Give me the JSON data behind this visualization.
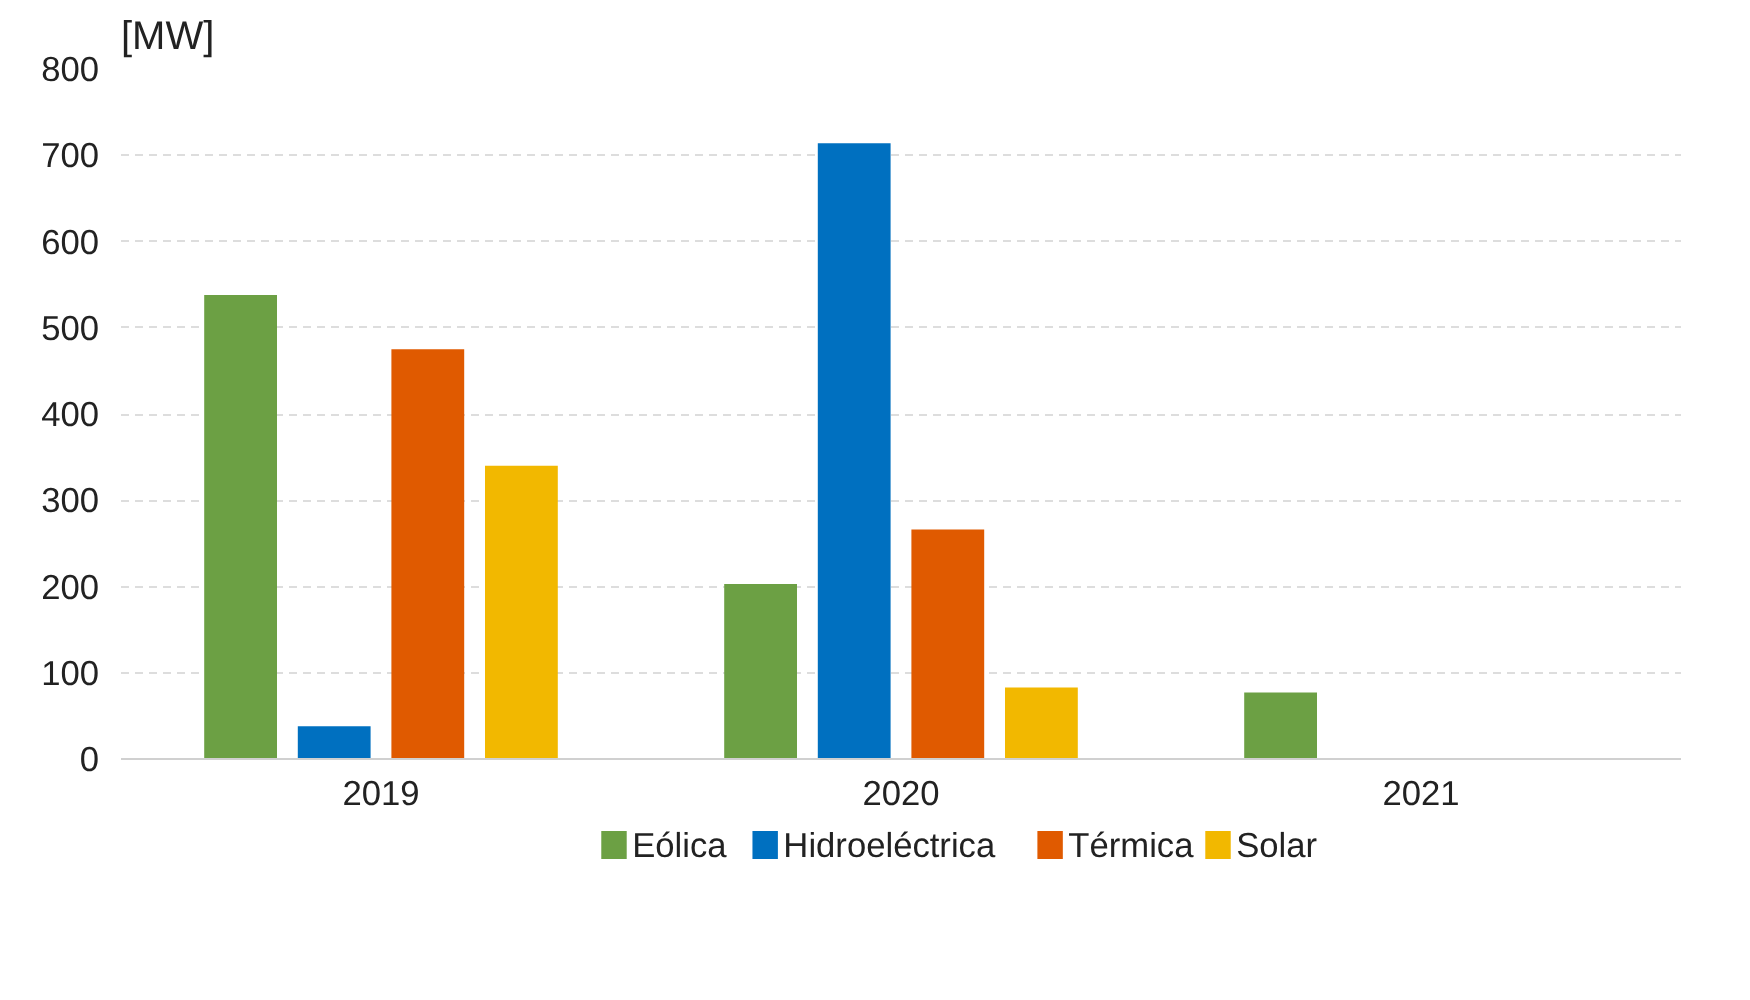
{
  "chart_data": {
    "type": "bar",
    "ylabel": "[MW]",
    "categories": [
      "2019",
      "2020",
      "2021"
    ],
    "series": [
      {
        "name": "Eólica",
        "color": "#6ca044",
        "values": [
          538,
          203,
          77
        ]
      },
      {
        "name": "Hidroeléctrica",
        "color": "#0070c0",
        "values": [
          38,
          714,
          null
        ]
      },
      {
        "name": "Térmica",
        "color": "#e05a00",
        "values": [
          475,
          266,
          null
        ]
      },
      {
        "name": "Solar",
        "color": "#f2b800",
        "values": [
          340,
          83,
          null
        ]
      }
    ],
    "ylim": [
      0,
      800
    ],
    "yticks": [
      0,
      100,
      200,
      300,
      400,
      500,
      600,
      700,
      800
    ],
    "grid": "y",
    "legend": "bottom"
  }
}
